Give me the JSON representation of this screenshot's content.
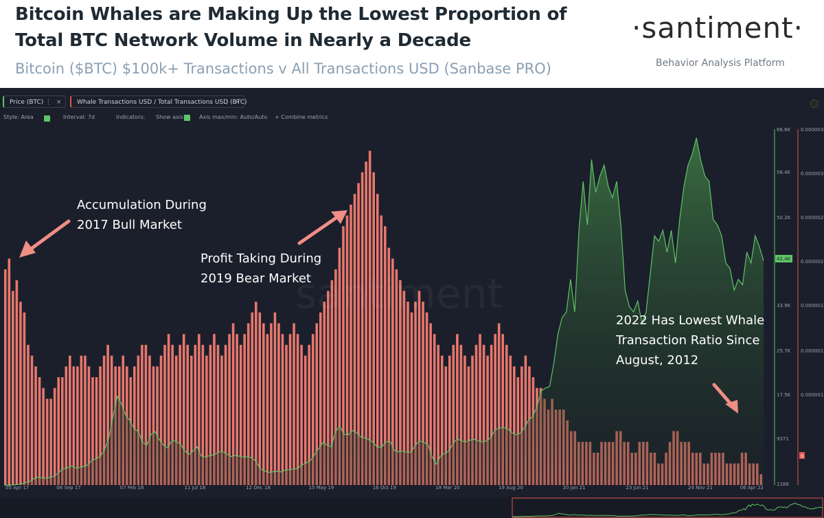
{
  "header": {
    "title_line1": "Bitcoin Whales are Making Up the Lowest Proportion of",
    "title_line2": "Total BTC Network Volume in Nearly a Decade",
    "subtitle": "Bitcoin ($BTC) $100k+ Transactions v All Transactions USD (Sanbase PRO)",
    "brand": "·santiment·",
    "tagline": "Behavior Analysis Platform"
  },
  "tabs": [
    {
      "label": "Price (BTC)",
      "color": "#5fc466"
    },
    {
      "label": "Whale Transactions USD / Total Transactions USD (BTC)",
      "color": "#e1574f"
    }
  ],
  "toolbar": {
    "style": "Style: Area",
    "interval": "Interval: 7d",
    "indicators": "Indicators:",
    "show_axis": "Show axis",
    "axis_mode": "Axis max/min: Auto/Auto",
    "combine": "+ Combine metrics"
  },
  "annotations": {
    "a1_line1": "Accumulation During",
    "a1_line2": "2017 Bull Market",
    "a2_line1": "Profit Taking During",
    "a2_line2": "2019 Bear Market",
    "a3_line1": "2022 Has Lowest Whale",
    "a3_line2": "Transaction Ratio Since",
    "a3_line3": "August, 2012"
  },
  "chart_data": {
    "type": "bar",
    "x_tick_labels": [
      "05 Apr 17",
      "06 Sep 17",
      "07 Feb 18",
      "11 Jul 18",
      "12 Dec 18",
      "15 May 19",
      "16 Oct 19",
      "18 Mar 20",
      "19 Aug 20",
      "20 Jan 21",
      "23 Jun 21",
      "24 Nov 21",
      "06 Apr 22"
    ],
    "price_axis": {
      "ticks": [
        "66.6K",
        "58.4K",
        "50.2K",
        "42.4K",
        "33.9K",
        "25.7K",
        "17.5K",
        "9371",
        "1188"
      ],
      "current_label": "42.4K",
      "color": "#5fc466"
    },
    "ratio_axis": {
      "ticks": [
        "0.000003",
        "0.000003",
        "0.000002",
        "0.000002",
        "0.000001",
        "0.000001",
        "0.000001",
        "0"
      ],
      "current_label": "0",
      "color": "#e1574f"
    },
    "ylim_price": [
      1188,
      66600
    ],
    "series": [
      {
        "name": "Whale Transactions USD / Total Transactions USD (BTC)",
        "kind": "bar",
        "color": "#e8776c",
        "values": [
          2e-06,
          2.1e-06,
          1.8e-06,
          1.9e-06,
          1.7e-06,
          1.6e-06,
          1.3e-06,
          1.2e-06,
          1.1e-06,
          1e-06,
          9e-07,
          8e-07,
          8e-07,
          9e-07,
          1e-06,
          1e-06,
          1.1e-06,
          1.2e-06,
          1.1e-06,
          1.1e-06,
          1.2e-06,
          1.2e-06,
          1.1e-06,
          1e-06,
          1e-06,
          1.1e-06,
          1.2e-06,
          1.3e-06,
          1.2e-06,
          1.1e-06,
          1.1e-06,
          1.2e-06,
          1.1e-06,
          1e-06,
          1.1e-06,
          1.2e-06,
          1.3e-06,
          1.3e-06,
          1.2e-06,
          1.1e-06,
          1.1e-06,
          1.2e-06,
          1.3e-06,
          1.4e-06,
          1.3e-06,
          1.2e-06,
          1.3e-06,
          1.4e-06,
          1.3e-06,
          1.2e-06,
          1.3e-06,
          1.4e-06,
          1.3e-06,
          1.2e-06,
          1.3e-06,
          1.4e-06,
          1.3e-06,
          1.2e-06,
          1.3e-06,
          1.4e-06,
          1.5e-06,
          1.4e-06,
          1.3e-06,
          1.4e-06,
          1.5e-06,
          1.6e-06,
          1.7e-06,
          1.6e-06,
          1.5e-06,
          1.4e-06,
          1.5e-06,
          1.6e-06,
          1.5e-06,
          1.4e-06,
          1.3e-06,
          1.4e-06,
          1.5e-06,
          1.4e-06,
          1.3e-06,
          1.2e-06,
          1.3e-06,
          1.4e-06,
          1.5e-06,
          1.6e-06,
          1.7e-06,
          1.8e-06,
          1.9e-06,
          2e-06,
          2.2e-06,
          2.4e-06,
          2.5e-06,
          2.6e-06,
          2.7e-06,
          2.8e-06,
          2.9e-06,
          3e-06,
          3.1e-06,
          2.9e-06,
          2.7e-06,
          2.5e-06,
          2.4e-06,
          2.2e-06,
          2.1e-06,
          2e-06,
          1.9e-06,
          1.8e-06,
          1.7e-06,
          1.6e-06,
          1.7e-06,
          1.8e-06,
          1.7e-06,
          1.6e-06,
          1.5e-06,
          1.4e-06,
          1.3e-06,
          1.2e-06,
          1.1e-06,
          1.2e-06,
          1.3e-06,
          1.4e-06,
          1.3e-06,
          1.2e-06,
          1.1e-06,
          1.2e-06,
          1.3e-06,
          1.4e-06,
          1.3e-06,
          1.2e-06,
          1.3e-06,
          1.4e-06,
          1.5e-06,
          1.4e-06,
          1.3e-06,
          1.2e-06,
          1.1e-06,
          1e-06,
          1.1e-06,
          1.2e-06,
          1.1e-06,
          1e-06,
          9e-07,
          9e-07,
          8e-07,
          7e-07,
          8e-07,
          7e-07,
          7e-07,
          7e-07,
          6e-07,
          5e-07,
          5e-07,
          4e-07,
          4e-07,
          4e-07,
          4e-07,
          3e-07,
          3e-07,
          4e-07,
          4e-07,
          4e-07,
          4e-07,
          5e-07,
          5e-07,
          4e-07,
          4e-07,
          3e-07,
          3e-07,
          4e-07,
          4e-07,
          4e-07,
          3e-07,
          3e-07,
          2e-07,
          2e-07,
          3e-07,
          4e-07,
          5e-07,
          5e-07,
          4e-07,
          4e-07,
          4e-07,
          3e-07,
          3e-07,
          3e-07,
          2e-07,
          2e-07,
          3e-07,
          3e-07,
          3e-07,
          3e-07,
          2e-07,
          2e-07,
          2e-07,
          2e-07,
          3e-07,
          3e-07,
          2e-07,
          2e-07,
          2e-07,
          1e-07
        ]
      },
      {
        "name": "Price (BTC)",
        "kind": "area",
        "color": "#5fc466",
        "values": [
          1188,
          1150,
          1200,
          1280,
          1350,
          1600,
          1800,
          2300,
          2600,
          2500,
          2450,
          2600,
          2800,
          3500,
          4100,
          4300,
          4700,
          4300,
          4400,
          4600,
          4900,
          5800,
          6000,
          6500,
          7800,
          10000,
          14000,
          17500,
          16000,
          14000,
          13000,
          11500,
          11000,
          9000,
          8500,
          10500,
          11000,
          9500,
          8500,
          8000,
          9400,
          9200,
          8700,
          7500,
          6800,
          7400,
          8200,
          6500,
          6300,
          6600,
          6700,
          7200,
          7400,
          6900,
          6400,
          6600,
          6500,
          6300,
          6400,
          6200,
          5600,
          4200,
          3800,
          3500,
          3600,
          3700,
          3600,
          3900,
          4000,
          4100,
          4200,
          4900,
          5200,
          5700,
          6800,
          7900,
          9000,
          8500,
          8200,
          11000,
          12000,
          10500,
          10400,
          11200,
          10800,
          10000,
          9800,
          9500,
          9000,
          8100,
          8200,
          9100,
          9200,
          7500,
          7300,
          7400,
          7200,
          7200,
          8500,
          9300,
          9000,
          8600,
          6400,
          5000,
          6500,
          7000,
          7400,
          8800,
          9700,
          9300,
          9100,
          9400,
          9600,
          9300,
          9100,
          9300,
          9900,
          11300,
          11600,
          11800,
          11500,
          10800,
          10400,
          10700,
          11700,
          13100,
          13800,
          15600,
          18500,
          19000,
          19300,
          23500,
          29000,
          32000,
          33000,
          39000,
          33000,
          48000,
          57000,
          49000,
          61000,
          55000,
          58000,
          60000,
          56000,
          54000,
          57000,
          49000,
          37000,
          34000,
          33000,
          35000,
          31000,
          33000,
          40000,
          47000,
          46000,
          48000,
          44000,
          48000,
          42000,
          50000,
          56000,
          60000,
          62000,
          65000,
          61000,
          58000,
          57000,
          50000,
          49000,
          47000,
          42000,
          41000,
          37000,
          39000,
          38000,
          44000,
          42000,
          47000,
          45000,
          42400
        ]
      }
    ]
  }
}
